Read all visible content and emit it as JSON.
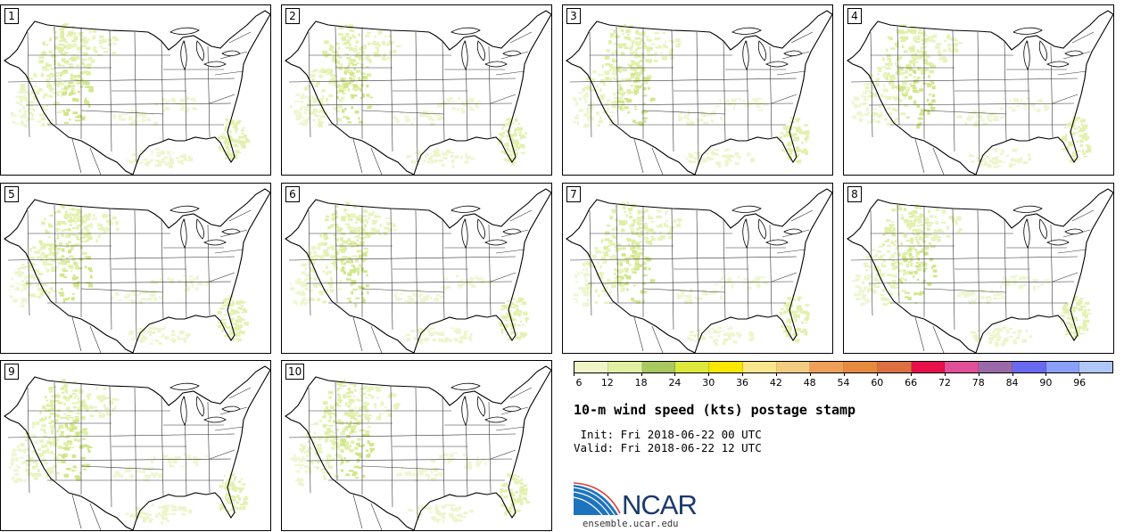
{
  "panels": [
    {
      "label": "1"
    },
    {
      "label": "2"
    },
    {
      "label": "3"
    },
    {
      "label": "4"
    },
    {
      "label": "5"
    },
    {
      "label": "6"
    },
    {
      "label": "7"
    },
    {
      "label": "8"
    },
    {
      "label": "9"
    },
    {
      "label": "10"
    }
  ],
  "colorbar": {
    "ticks": [
      "6",
      "12",
      "18",
      "24",
      "30",
      "36",
      "42",
      "48",
      "54",
      "60",
      "66",
      "72",
      "78",
      "84",
      "90",
      "96"
    ],
    "colors": [
      "#f0f5c8",
      "#dff0a0",
      "#a8c860",
      "#dce83a",
      "#f8e800",
      "#fae68a",
      "#f2cc80",
      "#eea058",
      "#e68a40",
      "#dc7040",
      "#e8104a",
      "#e05098",
      "#9a6aa8",
      "#6a6af0",
      "#8aa0f8",
      "#b0c8f8"
    ]
  },
  "title": "10-m wind speed (kts) postage stamp",
  "init": " Init: Fri 2018-06-22 00 UTC",
  "valid": "Valid: Fri 2018-06-22 12 UTC",
  "logo_text": "NCAR",
  "url": "ensemble.ucar.edu"
}
